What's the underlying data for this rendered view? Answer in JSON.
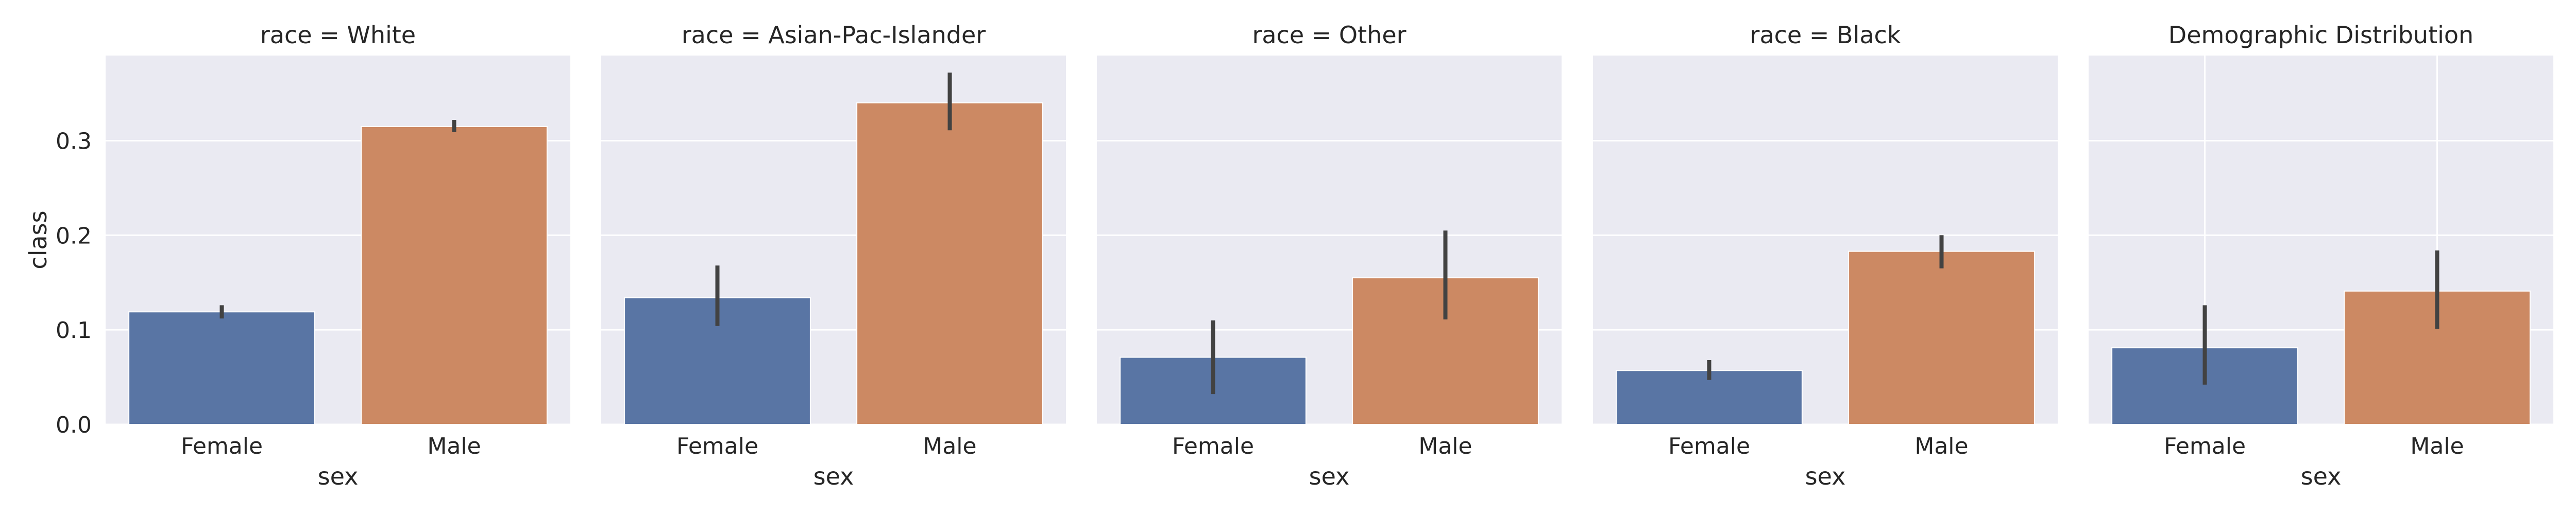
{
  "chart_data": {
    "type": "bar",
    "layout": "facet-grid-1x5",
    "shared_y_axis": true,
    "ylabel": "class",
    "xlabel": "sex",
    "ylim": [
      0,
      0.39
    ],
    "yticks": [
      "0.0",
      "0.1",
      "0.2",
      "0.3"
    ],
    "categories": [
      "Female",
      "Male"
    ],
    "colors": {
      "Female": "#5975a4",
      "Male": "#cc8963"
    },
    "background": "#eaeaf2",
    "grid": true,
    "panels": [
      {
        "title": "race =  White",
        "values": [
          0.119,
          0.315
        ],
        "ci": [
          [
            0.112,
            0.126
          ],
          [
            0.309,
            0.322
          ]
        ]
      },
      {
        "title": "race =  Asian-Pac-Islander",
        "values": [
          0.134,
          0.34
        ],
        "ci": [
          [
            0.104,
            0.168
          ],
          [
            0.311,
            0.372
          ]
        ]
      },
      {
        "title": "race =  Other",
        "values": [
          0.071,
          0.155
        ],
        "ci": [
          [
            0.032,
            0.11
          ],
          [
            0.111,
            0.205
          ]
        ]
      },
      {
        "title": "race =  Black",
        "values": [
          0.057,
          0.183
        ],
        "ci": [
          [
            0.047,
            0.068
          ],
          [
            0.165,
            0.2
          ]
        ]
      },
      {
        "title": "Demographic Distribution",
        "values": [
          0.081,
          0.141
        ],
        "ci": [
          [
            0.042,
            0.126
          ],
          [
            0.101,
            0.184
          ]
        ],
        "vertical_gridlines": true
      }
    ]
  }
}
